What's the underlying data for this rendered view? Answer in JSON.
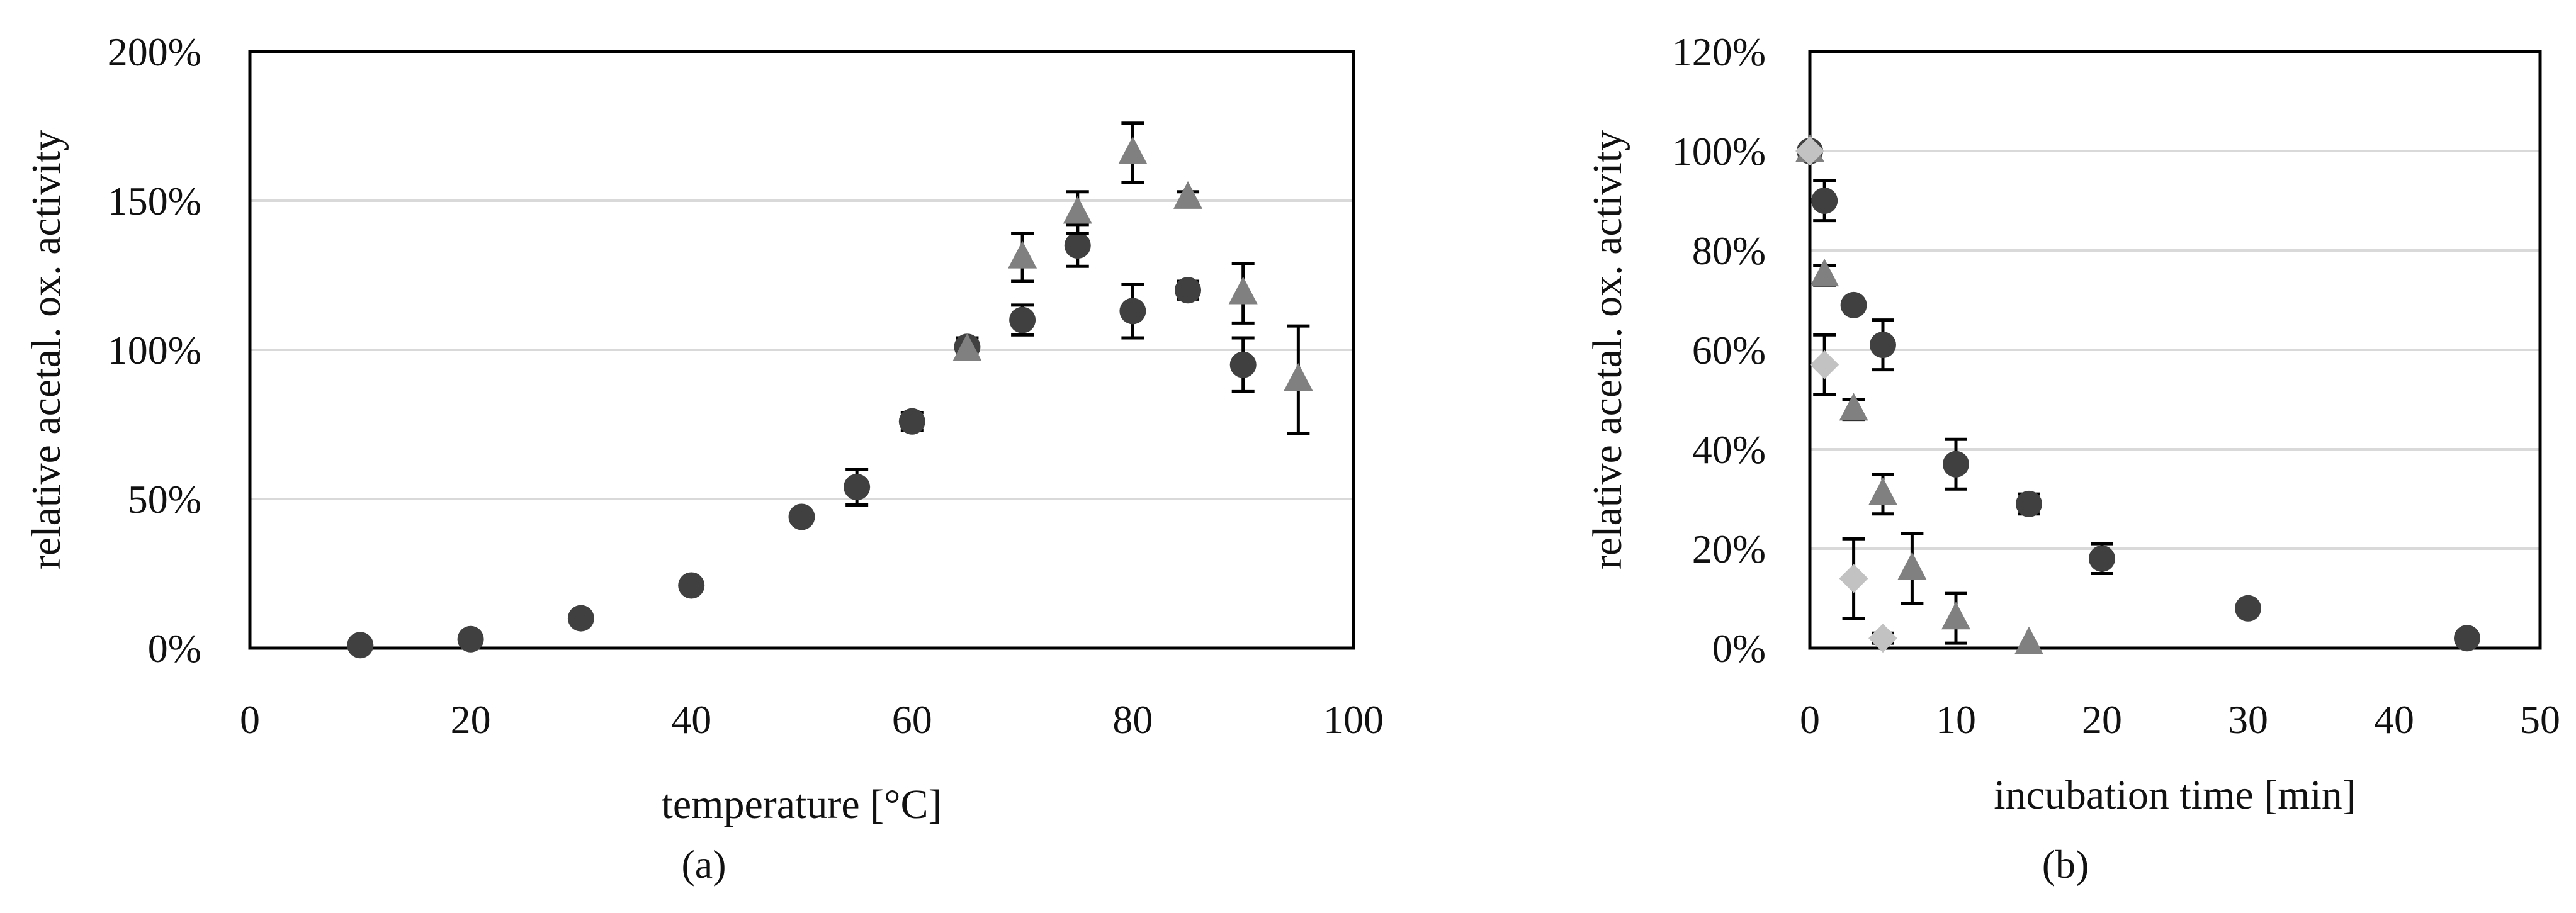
{
  "colors": {
    "circle": "#404040",
    "triangle": "#808080",
    "diamond": "#c2c2c2",
    "gridline": "#d9d9d9",
    "errorbar": "#000000",
    "axis": "#000000",
    "text": "#111111"
  },
  "chart_data": [
    {
      "panel_label": "(a)",
      "type": "scatter",
      "xlabel": "temperature [°C]",
      "ylabel": "relative acetal. ox. activity",
      "xlim": [
        0,
        100
      ],
      "ylim": [
        0,
        200
      ],
      "xticks": [
        0,
        20,
        40,
        60,
        80,
        100
      ],
      "xtick_labels": [
        "0",
        "20",
        "40",
        "60",
        "80",
        "100"
      ],
      "yticks": [
        0,
        50,
        100,
        150,
        200
      ],
      "ytick_labels": [
        "0%",
        "50%",
        "100%",
        "150%",
        "200%"
      ],
      "y_unit": "percent",
      "grid": "horizontal",
      "legend": "none",
      "series": [
        {
          "marker": "circle",
          "color": "#404040",
          "points": [
            {
              "x": 10,
              "y": 1
            },
            {
              "x": 20,
              "y": 3
            },
            {
              "x": 30,
              "y": 10
            },
            {
              "x": 40,
              "y": 21
            },
            {
              "x": 50,
              "y": 44
            },
            {
              "x": 55,
              "y": 54,
              "err": 6
            },
            {
              "x": 60,
              "y": 76,
              "err": 3
            },
            {
              "x": 65,
              "y": 101,
              "err": 3
            },
            {
              "x": 70,
              "y": 110,
              "err": 5
            },
            {
              "x": 75,
              "y": 135,
              "err": 7
            },
            {
              "x": 80,
              "y": 113,
              "err": 9
            },
            {
              "x": 85,
              "y": 120,
              "err": 3
            },
            {
              "x": 90,
              "y": 95,
              "err": 9
            }
          ]
        },
        {
          "marker": "triangle",
          "color": "#808080",
          "points": [
            {
              "x": 65,
              "y": 100
            },
            {
              "x": 70,
              "y": 131,
              "err": 8
            },
            {
              "x": 75,
              "y": 146,
              "err": 7
            },
            {
              "x": 80,
              "y": 166,
              "err": 10
            },
            {
              "x": 85,
              "y": 151,
              "err": 2
            },
            {
              "x": 90,
              "y": 119,
              "err": 10
            },
            {
              "x": 95,
              "y": 90,
              "err": 18
            }
          ]
        }
      ]
    },
    {
      "panel_label": "(b)",
      "type": "scatter",
      "xlabel": "incubation time [min]",
      "ylabel": "relative acetal. ox. activity",
      "xlim": [
        0,
        50
      ],
      "ylim": [
        0,
        120
      ],
      "xticks": [
        0,
        10,
        20,
        30,
        40,
        50
      ],
      "xtick_labels": [
        "0",
        "10",
        "20",
        "30",
        "40",
        "50"
      ],
      "yticks": [
        0,
        20,
        40,
        60,
        80,
        100,
        120
      ],
      "ytick_labels": [
        "0%",
        "20%",
        "40%",
        "60%",
        "80%",
        "100%",
        "120%"
      ],
      "y_unit": "percent",
      "grid": "horizontal",
      "legend": "none",
      "series": [
        {
          "marker": "circle",
          "color": "#404040",
          "points": [
            {
              "x": 0,
              "y": 100
            },
            {
              "x": 1,
              "y": 90,
              "err": 4
            },
            {
              "x": 3,
              "y": 69
            },
            {
              "x": 5,
              "y": 61,
              "err": 5
            },
            {
              "x": 10,
              "y": 37,
              "err": 5
            },
            {
              "x": 15,
              "y": 29,
              "err": 2
            },
            {
              "x": 20,
              "y": 18,
              "err": 3
            },
            {
              "x": 30,
              "y": 8
            },
            {
              "x": 45,
              "y": 2
            }
          ]
        },
        {
          "marker": "triangle",
          "color": "#808080",
          "points": [
            {
              "x": 0,
              "y": 100
            },
            {
              "x": 1,
              "y": 75,
              "err": 2
            },
            {
              "x": 3,
              "y": 48,
              "err": 2
            },
            {
              "x": 5,
              "y": 31,
              "err": 4
            },
            {
              "x": 7,
              "y": 16,
              "err": 7
            },
            {
              "x": 10,
              "y": 6,
              "err": 5
            },
            {
              "x": 15,
              "y": 1
            }
          ]
        },
        {
          "marker": "diamond",
          "color": "#c2c2c2",
          "points": [
            {
              "x": 0,
              "y": 100
            },
            {
              "x": 1,
              "y": 57,
              "err": 6
            },
            {
              "x": 3,
              "y": 14,
              "err": 8
            },
            {
              "x": 5,
              "y": 2,
              "err": 1
            }
          ]
        }
      ]
    }
  ]
}
